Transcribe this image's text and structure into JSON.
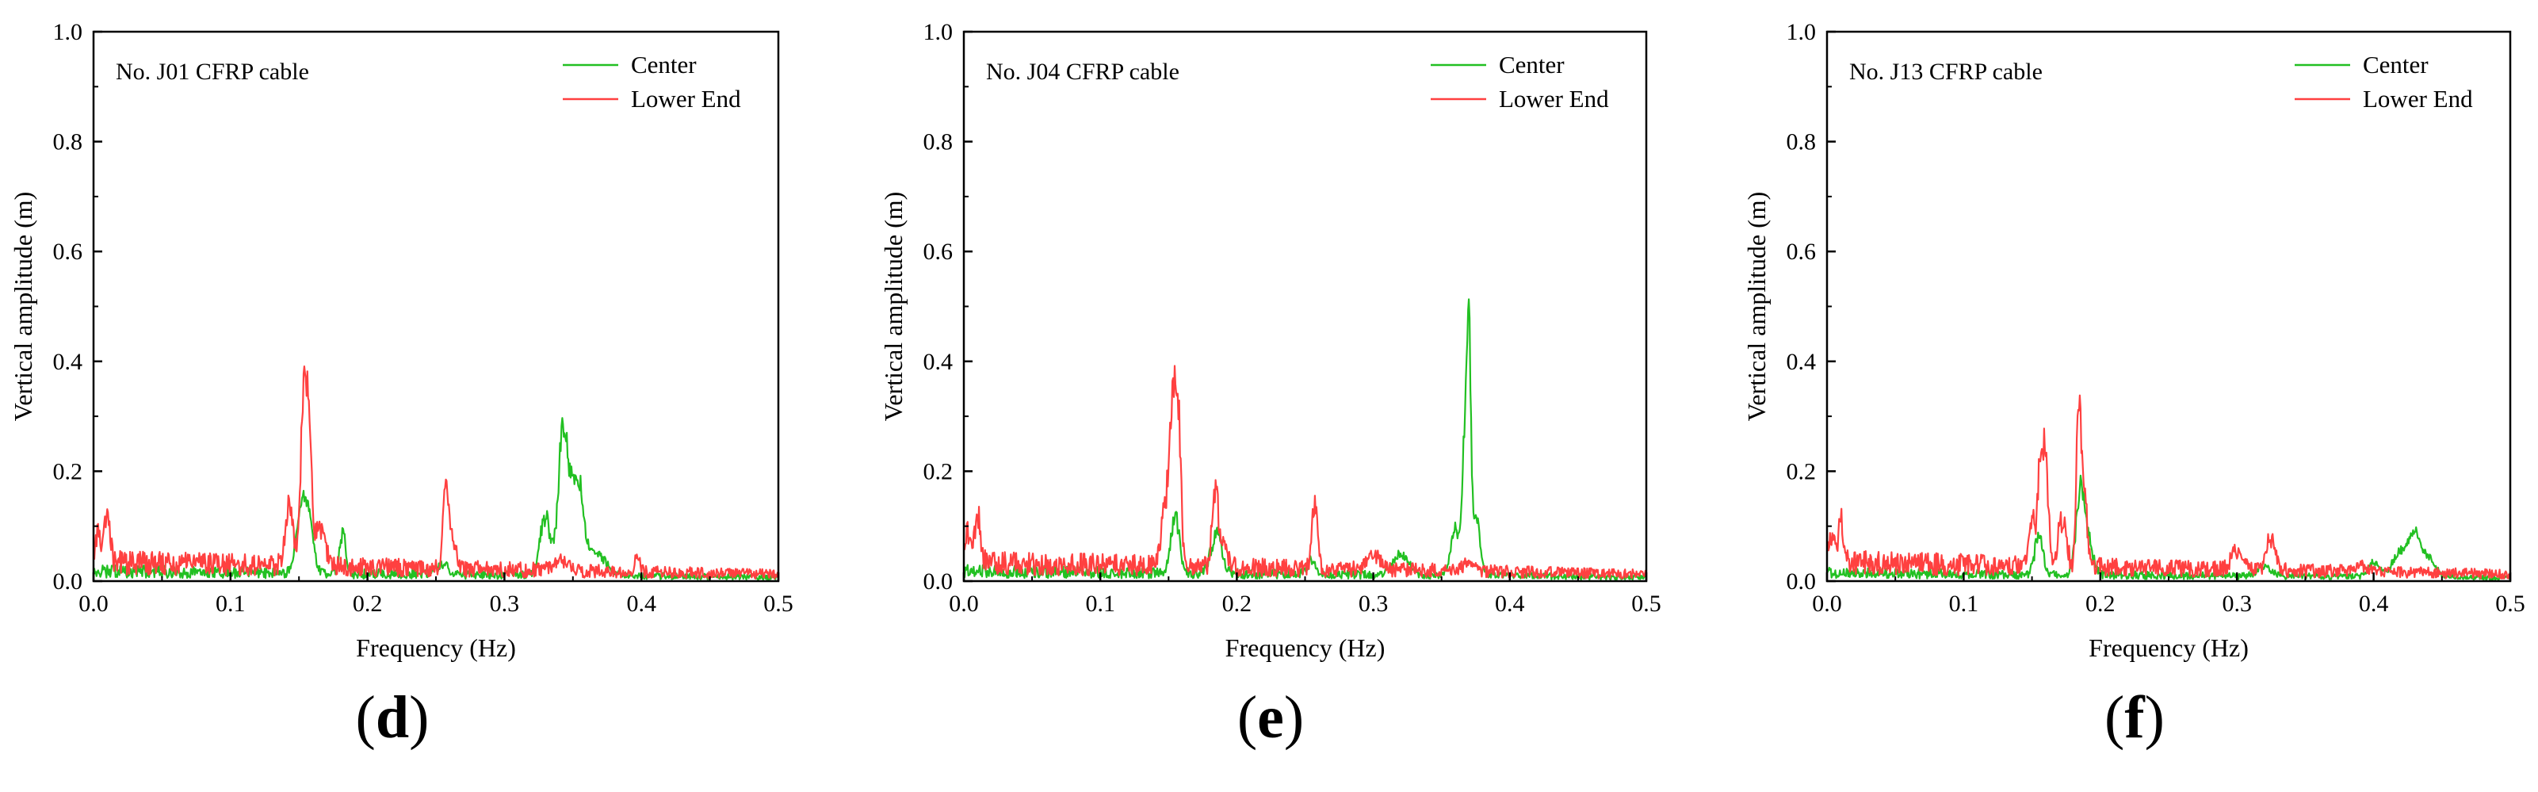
{
  "colors": {
    "center": "#22c022",
    "lower_end": "#ff4040",
    "axis": "#000000"
  },
  "chart_data": [
    {
      "type": "line",
      "panel_label": "d",
      "annotation": "No. J01 CFRP cable",
      "xlabel": "Frequency (Hz)",
      "ylabel": "Vertical amplitude (m)",
      "xlim": [
        0,
        0.5
      ],
      "ylim": [
        0,
        1.0
      ],
      "x_ticks": [
        "0.0",
        "0.1",
        "0.2",
        "0.3",
        "0.4",
        "0.5"
      ],
      "y_ticks": [
        "0.0",
        "0.2",
        "0.4",
        "0.6",
        "0.8",
        "1.0"
      ],
      "legend": [
        "Center",
        "Lower End"
      ],
      "series": [
        {
          "name": "Center",
          "color": "#22c022",
          "baseline": 0.015,
          "peaks": [
            [
              0.152,
              0.13,
              0.004
            ],
            [
              0.158,
              0.09,
              0.003
            ],
            [
              0.182,
              0.09,
              0.002
            ],
            [
              0.255,
              0.02,
              0.004
            ],
            [
              0.33,
              0.12,
              0.004
            ],
            [
              0.342,
              0.245,
              0.003
            ],
            [
              0.348,
              0.17,
              0.004
            ],
            [
              0.355,
              0.14,
              0.003
            ],
            [
              0.365,
              0.05,
              0.008
            ]
          ]
        },
        {
          "name": "Lower End",
          "color": "#ff4040",
          "baseline": 0.03,
          "peaks": [
            [
              0.003,
              0.07,
              0.002
            ],
            [
              0.01,
              0.11,
              0.002
            ],
            [
              0.143,
              0.12,
              0.003
            ],
            [
              0.153,
              0.32,
              0.002
            ],
            [
              0.157,
              0.31,
              0.002
            ],
            [
              0.165,
              0.08,
              0.004
            ],
            [
              0.257,
              0.16,
              0.002
            ],
            [
              0.262,
              0.06,
              0.003
            ],
            [
              0.34,
              0.02,
              0.005
            ],
            [
              0.397,
              0.025,
              0.002
            ]
          ]
        }
      ]
    },
    {
      "type": "line",
      "panel_label": "e",
      "annotation": "No. J04 CFRP cable",
      "xlabel": "Frequency (Hz)",
      "ylabel": "Vertical amplitude (m)",
      "xlim": [
        0,
        0.5
      ],
      "ylim": [
        0,
        1.0
      ],
      "x_ticks": [
        "0.0",
        "0.1",
        "0.2",
        "0.3",
        "0.4",
        "0.5"
      ],
      "y_ticks": [
        "0.0",
        "0.2",
        "0.4",
        "0.6",
        "0.8",
        "1.0"
      ],
      "legend": [
        "Center",
        "Lower End"
      ],
      "series": [
        {
          "name": "Center",
          "color": "#22c022",
          "baseline": 0.015,
          "peaks": [
            [
              0.155,
              0.12,
              0.003
            ],
            [
              0.185,
              0.08,
              0.004
            ],
            [
              0.255,
              0.03,
              0.003
            ],
            [
              0.32,
              0.04,
              0.006
            ],
            [
              0.36,
              0.1,
              0.003
            ],
            [
              0.367,
              0.25,
              0.002
            ],
            [
              0.37,
              0.405,
              0.0015
            ],
            [
              0.375,
              0.12,
              0.003
            ]
          ]
        },
        {
          "name": "Lower End",
          "color": "#ff4040",
          "baseline": 0.03,
          "peaks": [
            [
              0.003,
              0.07,
              0.002
            ],
            [
              0.01,
              0.11,
              0.002
            ],
            [
              0.148,
              0.13,
              0.003
            ],
            [
              0.153,
              0.3,
              0.002
            ],
            [
              0.157,
              0.31,
              0.002
            ],
            [
              0.184,
              0.165,
              0.002
            ],
            [
              0.19,
              0.06,
              0.003
            ],
            [
              0.257,
              0.14,
              0.002
            ],
            [
              0.3,
              0.03,
              0.005
            ],
            [
              0.37,
              0.02,
              0.004
            ]
          ]
        }
      ]
    },
    {
      "type": "line",
      "panel_label": "f",
      "annotation": "No. J13 CFRP cable",
      "xlabel": "Frequency (Hz)",
      "ylabel": "Vertical amplitude (m)",
      "xlim": [
        0,
        0.5
      ],
      "ylim": [
        0,
        1.0
      ],
      "x_ticks": [
        "0.0",
        "0.1",
        "0.2",
        "0.3",
        "0.4",
        "0.5"
      ],
      "y_ticks": [
        "0.0",
        "0.2",
        "0.4",
        "0.6",
        "0.8",
        "1.0"
      ],
      "legend": [
        "Center",
        "Lower End"
      ],
      "series": [
        {
          "name": "Center",
          "color": "#22c022",
          "baseline": 0.012,
          "peaks": [
            [
              0.155,
              0.08,
              0.003
            ],
            [
              0.185,
              0.14,
              0.003
            ],
            [
              0.19,
              0.08,
              0.004
            ],
            [
              0.32,
              0.02,
              0.005
            ],
            [
              0.4,
              0.03,
              0.004
            ],
            [
              0.42,
              0.05,
              0.006
            ],
            [
              0.43,
              0.08,
              0.004
            ],
            [
              0.44,
              0.04,
              0.005
            ]
          ]
        },
        {
          "name": "Lower End",
          "color": "#ff4040",
          "baseline": 0.03,
          "peaks": [
            [
              0.003,
              0.05,
              0.002
            ],
            [
              0.01,
              0.09,
              0.002
            ],
            [
              0.15,
              0.09,
              0.002
            ],
            [
              0.156,
              0.2,
              0.002
            ],
            [
              0.16,
              0.22,
              0.002
            ],
            [
              0.172,
              0.1,
              0.003
            ],
            [
              0.184,
              0.33,
              0.0015
            ],
            [
              0.188,
              0.19,
              0.002
            ],
            [
              0.3,
              0.04,
              0.004
            ],
            [
              0.325,
              0.07,
              0.003
            ],
            [
              0.39,
              0.015,
              0.004
            ]
          ]
        }
      ]
    }
  ]
}
